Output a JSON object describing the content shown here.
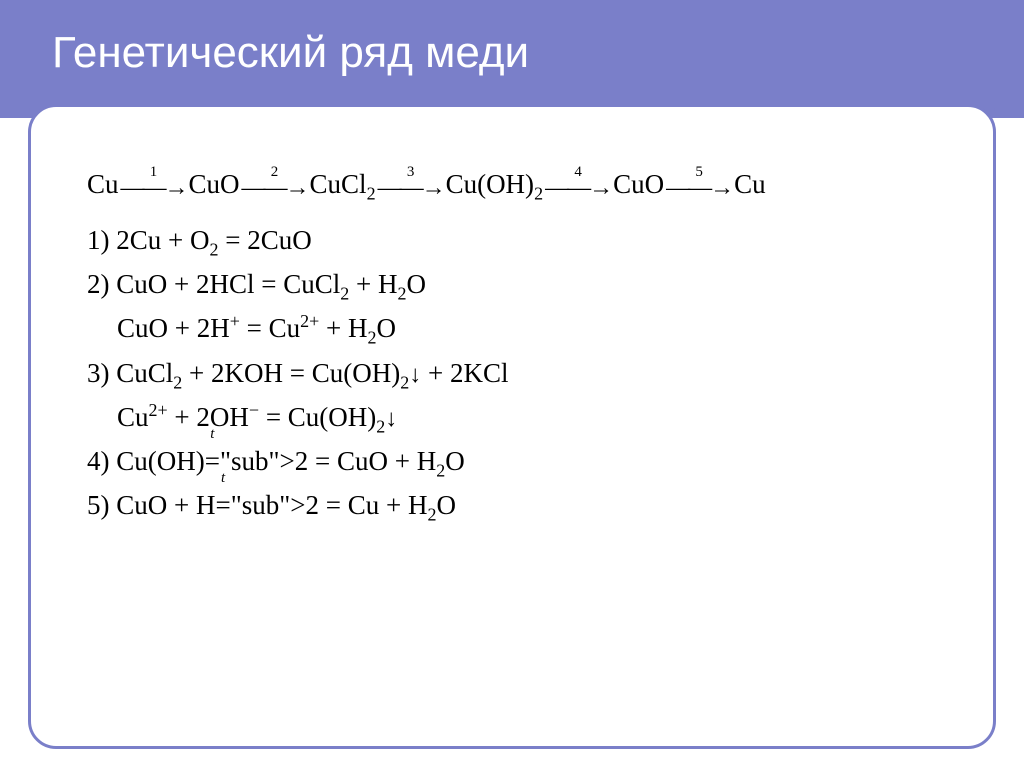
{
  "header": {
    "title": "Генетический ряд меди",
    "band_color": "#7a7fc9",
    "title_color": "#ffffff",
    "title_fontsize": 44
  },
  "panel": {
    "border_color": "#7a7fc9",
    "background": "#ffffff",
    "border_radius": 28
  },
  "chain": {
    "species": [
      "Cu",
      "CuO",
      "CuCl₂",
      "Cu(OH)₂",
      "CuO",
      "Cu"
    ],
    "arrow_labels": [
      "1",
      "2",
      "3",
      "4",
      "5"
    ],
    "fontsize": 27,
    "font_family": "Times New Roman"
  },
  "equations": {
    "fontsize": 27,
    "text_color": "#000000",
    "items": [
      {
        "n": "1)",
        "text": "2Cu  +   O₂   =   2CuO"
      },
      {
        "n": "2)",
        "text": "CuO   +   2HCl   =   CuCl₂ +   H₂O"
      },
      {
        "n": "",
        "text": "CuO  +  2H⁺  =  Cu²⁺  +  H₂O",
        "indent": true
      },
      {
        "n": "3)",
        "text": "CuCl₂  +  2KOH  =  Cu(OH)₂↓ +  2KCl"
      },
      {
        "n": "",
        "text": "Cu²⁺  +  2OH⁻  =  Cu(OH)₂↓",
        "indent": true
      },
      {
        "n": "4)",
        "text": "Cu(OH)₂ = CuO  +  H₂O",
        "over_t": true
      },
      {
        "n": "5)",
        "text": "CuO  +   H₂  =  Cu  +  H₂O",
        "over_t": true
      }
    ]
  }
}
